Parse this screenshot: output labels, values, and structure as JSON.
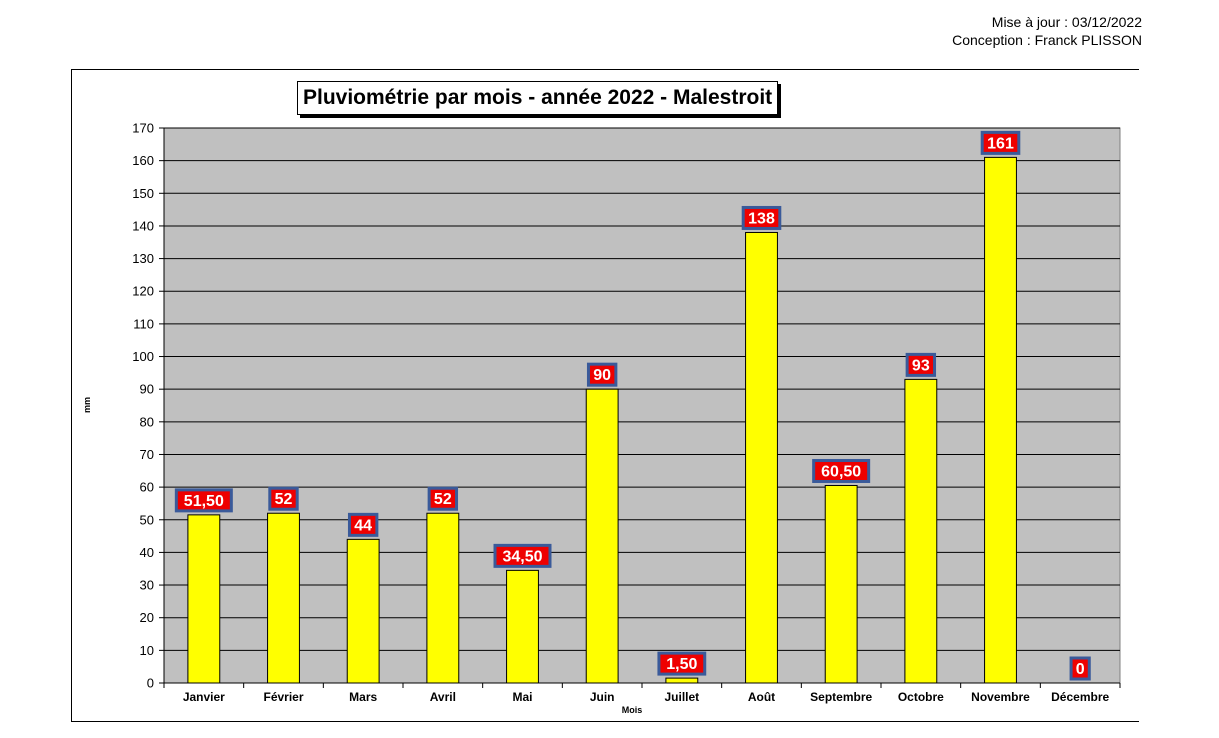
{
  "header": {
    "update_line": "Mise à jour : 03/12/2022",
    "credit_line": "Conception : Franck PLISSON"
  },
  "colors": {
    "plot_background": "#c0c0c0",
    "bar_fill": "#ffff00",
    "label_fill": "#ee0000",
    "label_border": "#3a5a9a"
  },
  "chart_data": {
    "type": "bar",
    "title": "Pluviométrie par mois - année 2022 - Malestroit",
    "xlabel": "Mois",
    "ylabel": "mm",
    "ylim": [
      0,
      170
    ],
    "ytick_step": 10,
    "grid": true,
    "legend": "none",
    "categories": [
      "Janvier",
      "Février",
      "Mars",
      "Avril",
      "Mai",
      "Juin",
      "Juillet",
      "Août",
      "Septembre",
      "Octobre",
      "Novembre",
      "Décembre"
    ],
    "values": [
      51.5,
      52,
      44,
      52,
      34.5,
      90,
      1.5,
      138,
      60.5,
      93,
      161,
      0
    ],
    "value_labels": [
      "51,50",
      "52",
      "44",
      "52",
      "34,50",
      "90",
      "1,50",
      "138",
      "60,50",
      "93",
      "161",
      "0"
    ]
  }
}
